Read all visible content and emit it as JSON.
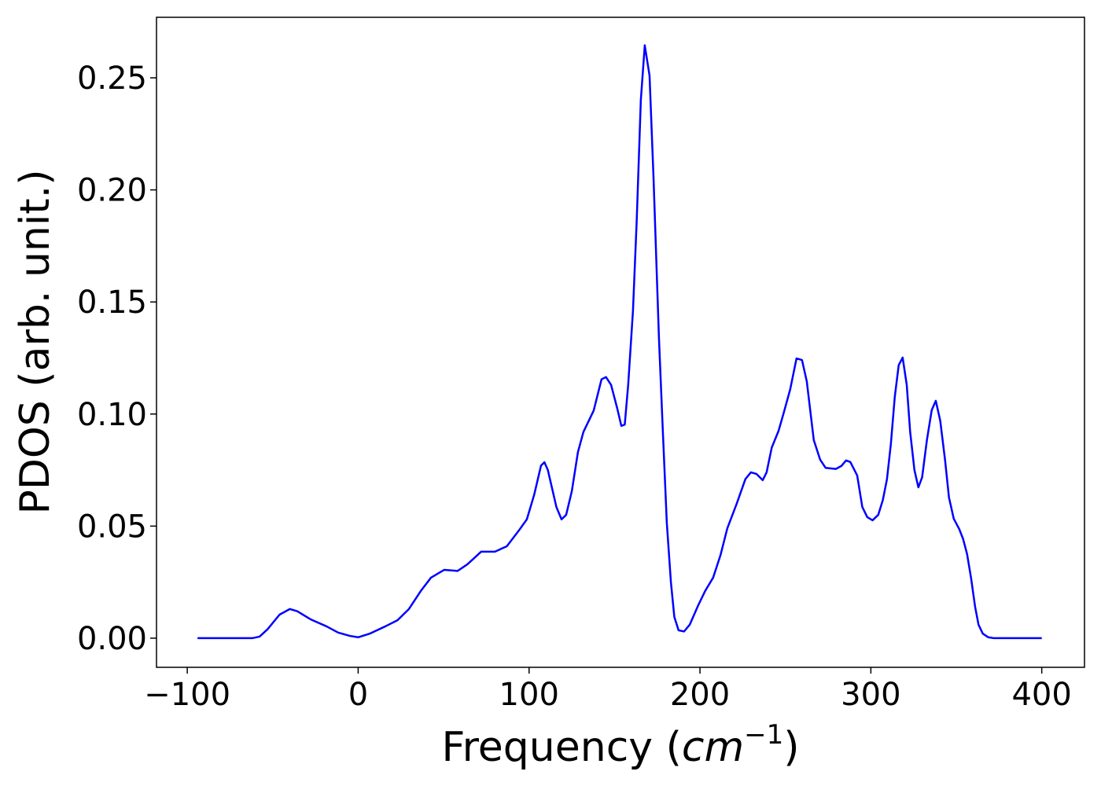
{
  "chart_data": {
    "type": "line",
    "xlabel": [
      "Frequency (",
      "cm",
      "−1",
      ")"
    ],
    "ylabel": "PDOS (arb. unit.)",
    "x": [
      -94,
      -62,
      -57.7,
      -53,
      -46,
      -40,
      -35.6,
      -27.8,
      -18.6,
      -11.7,
      -4.8,
      0,
      6.7,
      16,
      23,
      29.7,
      36.6,
      42.6,
      50.4,
      58.2,
      64,
      72,
      80,
      87,
      94,
      98.7,
      103,
      107,
      109,
      111,
      116,
      119,
      121.7,
      125,
      128.6,
      131.8,
      137.8,
      142.4,
      145,
      148,
      151.6,
      154,
      156,
      158,
      160.8,
      163,
      165.4,
      167.7,
      170.5,
      172.8,
      176,
      178.3,
      180.6,
      183,
      185,
      187.5,
      190.7,
      194,
      199,
      203,
      207.7,
      212,
      216,
      221.5,
      226.6,
      229.8,
      233,
      236.7,
      239,
      242,
      246,
      249,
      252.8,
      256.5,
      259.7,
      262.5,
      266.6,
      270.3,
      273.5,
      279.5,
      282.7,
      285.5,
      288,
      292,
      295,
      297.9,
      301,
      304.3,
      307,
      309.4,
      311.7,
      314,
      316.3,
      318.6,
      321,
      323,
      325.5,
      327.8,
      330,
      332.8,
      335.6,
      338,
      340.6,
      343.4,
      345.7,
      348.5,
      351.7,
      354,
      356.3,
      358.6,
      361,
      363,
      365.5,
      368.7,
      372,
      400
    ],
    "series": [
      {
        "color": "#0000ff",
        "values": [
          0,
          0,
          0.0007,
          0.004,
          0.0105,
          0.013,
          0.012,
          0.0084,
          0.0053,
          0.0025,
          0.001,
          0.0004,
          0.002,
          0.0053,
          0.008,
          0.013,
          0.021,
          0.027,
          0.0305,
          0.03,
          0.033,
          0.0386,
          0.0386,
          0.041,
          0.048,
          0.053,
          0.064,
          0.077,
          0.0785,
          0.075,
          0.0585,
          0.053,
          0.055,
          0.0655,
          0.083,
          0.092,
          0.1015,
          0.1155,
          0.1165,
          0.113,
          0.1025,
          0.0947,
          0.0953,
          0.113,
          0.146,
          0.1865,
          0.24,
          0.2645,
          0.251,
          0.206,
          0.134,
          0.092,
          0.0515,
          0.025,
          0.0095,
          0.0035,
          0.003,
          0.006,
          0.0147,
          0.021,
          0.027,
          0.037,
          0.049,
          0.06,
          0.071,
          0.074,
          0.0733,
          0.0705,
          0.074,
          0.085,
          0.0925,
          0.1005,
          0.111,
          0.1248,
          0.1241,
          0.1146,
          0.0884,
          0.0797,
          0.076,
          0.0755,
          0.0768,
          0.0793,
          0.0786,
          0.0726,
          0.0585,
          0.054,
          0.0526,
          0.055,
          0.0616,
          0.0708,
          0.0866,
          0.1077,
          0.1218,
          0.1252,
          0.113,
          0.092,
          0.075,
          0.0673,
          0.0718,
          0.0884,
          0.1017,
          0.1059,
          0.097,
          0.0796,
          0.0628,
          0.0533,
          0.0487,
          0.0442,
          0.0375,
          0.027,
          0.014,
          0.006,
          0.002,
          0.0004,
          0,
          0
        ]
      }
    ],
    "xlim": [
      -118,
      425
    ],
    "xticks": [
      {
        "value": -100,
        "label": "−100"
      },
      0,
      100,
      200,
      300,
      400
    ],
    "ylim": [
      -0.013,
      0.277
    ],
    "yticks": [
      {
        "value": 0,
        "label": "0.00"
      },
      0.05,
      {
        "value": 0.1,
        "label": "0.10"
      },
      0.15,
      {
        "value": 0.2,
        "label": "0.20"
      },
      0.25
    ]
  }
}
